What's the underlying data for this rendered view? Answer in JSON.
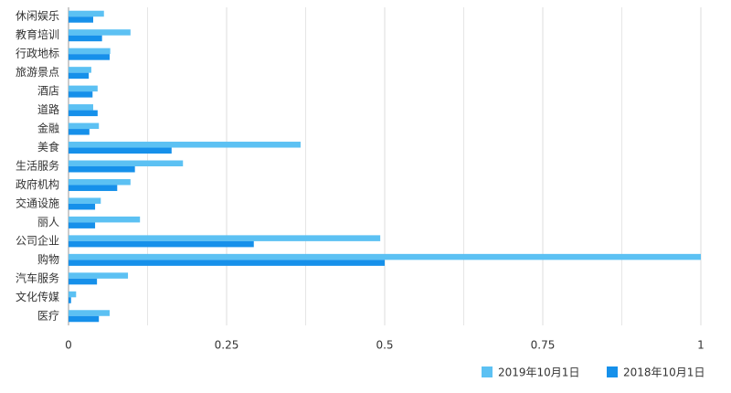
{
  "chart_data": {
    "type": "hbar",
    "categories": [
      "休闲娱乐",
      "教育培训",
      "行政地标",
      "旅游景点",
      "酒店",
      "道路",
      "金融",
      "美食",
      "生活服务",
      "政府机构",
      "交通设施",
      "丽人",
      "公司企业",
      "购物",
      "汽车服务",
      "文化传媒",
      "医疗"
    ],
    "series": [
      {
        "name": "2019年10月1日",
        "color": "#5cc1f3",
        "values": [
          0.056,
          0.098,
          0.066,
          0.036,
          0.046,
          0.039,
          0.048,
          0.367,
          0.181,
          0.098,
          0.051,
          0.113,
          0.493,
          1.0,
          0.094,
          0.012,
          0.065
        ]
      },
      {
        "name": "2018年10月1日",
        "color": "#1690ea",
        "values": [
          0.039,
          0.053,
          0.065,
          0.032,
          0.038,
          0.046,
          0.033,
          0.163,
          0.105,
          0.077,
          0.042,
          0.042,
          0.293,
          0.5,
          0.045,
          0.004,
          0.048
        ]
      }
    ],
    "xlim": [
      0,
      1
    ],
    "xticks": [
      0,
      0.25,
      0.5,
      0.75,
      1
    ],
    "xminor": [
      0.125,
      0.375,
      0.625,
      0.875
    ],
    "grid": true,
    "legend": "bottom-right"
  }
}
